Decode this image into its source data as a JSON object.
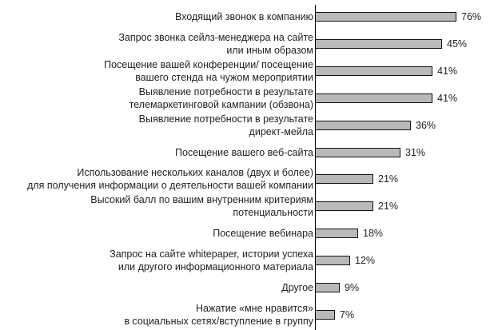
{
  "chart_data": {
    "type": "bar",
    "orientation": "horizontal",
    "title": "",
    "xlabel": "",
    "ylabel": "",
    "grid": false,
    "legend": null,
    "bar_color": "#b9b9b9",
    "bar_border_color": "#111111",
    "categories": [
      [
        "Входящий звонок в компанию"
      ],
      [
        "Запрос звонка сейлз-менеджера на сайте",
        "или иным образом"
      ],
      [
        "Посещение вашей конференции/ посещение",
        "вашего стенда на чужом мероприятии"
      ],
      [
        "Выявление потребности в результате",
        "телемаркетинговой кампании (обзвона)"
      ],
      [
        "Выявление потребности в результате",
        "директ-мейла"
      ],
      [
        "Посещение вашего веб-сайта"
      ],
      [
        "Использование нескольких каналов (двух и более)",
        "для получения информации о деятельности вашей компании"
      ],
      [
        "Высокий балл по вашим внутренним критериям",
        "потенциальности"
      ],
      [
        "Посещение вебинара"
      ],
      [
        "Запрос на сайте whitepaper, истории успеха",
        "или другого информационного материала"
      ],
      [
        "Другое"
      ],
      [
        "Нажатие «мне нравится»",
        "в социальных сетях/вступление в группу"
      ]
    ],
    "values": [
      76,
      45,
      41,
      41,
      36,
      31,
      21,
      21,
      18,
      12,
      9,
      7
    ],
    "value_labels": [
      "76%",
      "45%",
      "41%",
      "41%",
      "36%",
      "31%",
      "21%",
      "21%",
      "18%",
      "12%",
      "9%",
      "7%"
    ],
    "unit": "%"
  }
}
